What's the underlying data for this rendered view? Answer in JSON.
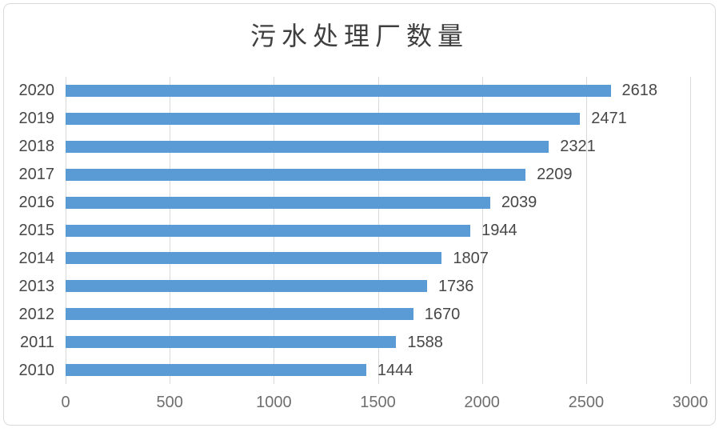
{
  "chart_data": {
    "type": "bar",
    "orientation": "horizontal",
    "title": "污水处理厂数量",
    "categories": [
      "2020",
      "2019",
      "2018",
      "2017",
      "2016",
      "2015",
      "2014",
      "2013",
      "2012",
      "2011",
      "2010"
    ],
    "values": [
      2618,
      2471,
      2321,
      2209,
      2039,
      1944,
      1807,
      1736,
      1670,
      1588,
      1444
    ],
    "xlabel": "",
    "ylabel": "",
    "xlim": [
      0,
      3000
    ],
    "x_ticks": [
      0,
      500,
      1000,
      1500,
      2000,
      2500,
      3000
    ],
    "grid": "vertical-only",
    "legend": "none",
    "data_labels": true
  },
  "colors": {
    "bar": "#5b9bd5",
    "gridline": "#d9d9d9",
    "title_text": "#3f3f3f",
    "category_text": "#474747",
    "value_text": "#474747",
    "tick_text": "#6f6f6f",
    "frame_border": "#d9d9d9",
    "background": "#ffffff"
  }
}
